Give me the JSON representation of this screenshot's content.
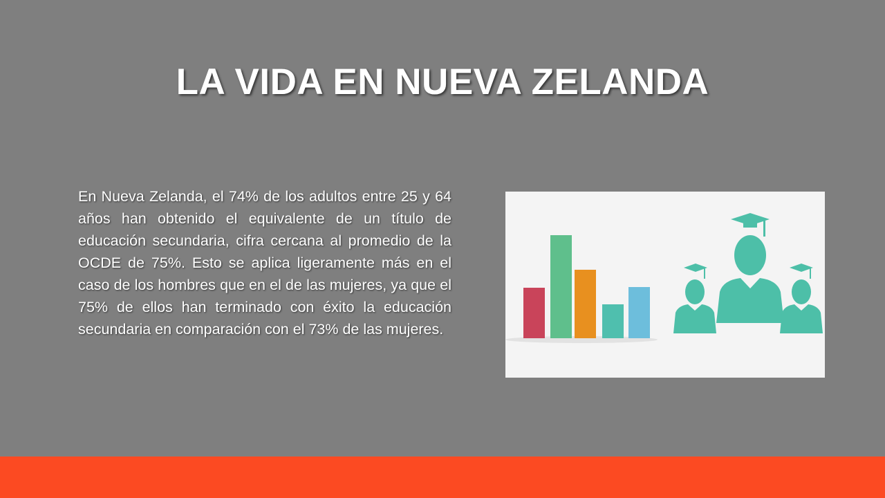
{
  "title": "LA VIDA EN NUEVA ZELANDA",
  "body": "En Nueva Zelanda, el 74% de los adultos entre 25 y 64 años han obtenido el equivalente de un título de educación secundaria, cifra cercana al promedio de la OCDE de 75%. Esto se aplica ligeramente más en el caso de los hombres que en el de las mujeres, ya que el 75% de ellos han terminado con éxito la educación secundaria en comparación con el 73% de las mujeres."
}
